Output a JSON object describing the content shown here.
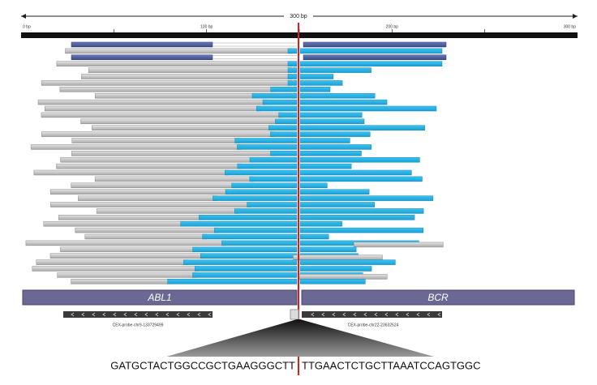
{
  "ruler": {
    "span_label": "300 bp",
    "ticks": [
      "0 bp",
      "100 bp",
      "200 bp",
      "300 bp"
    ]
  },
  "genes": [
    "ABL1",
    "BCR"
  ],
  "probes": [
    "CEX-probe-chr9-133729499",
    "CEX-probe-chr22-23632524"
  ],
  "sequence": {
    "left": "GATGCTACTGGCCGCTGAAGGGCTT",
    "right": "TTGAACTCTGCTTAAATCCAGTGGC"
  }
}
